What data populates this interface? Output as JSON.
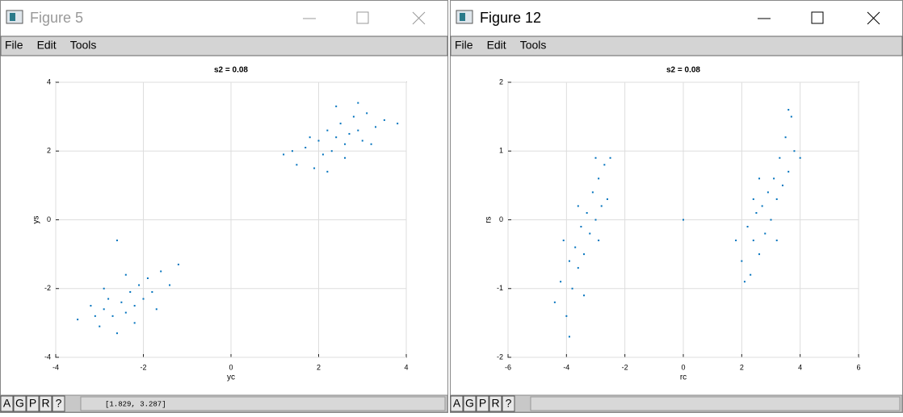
{
  "windows": [
    {
      "title": "Figure 5",
      "menu": [
        "File",
        "Edit",
        "Tools"
      ],
      "status_buttons": [
        "A",
        "G",
        "P",
        "R",
        "?"
      ],
      "status_text": "[1.829, 3.287]"
    },
    {
      "title": "Figure 12",
      "menu": [
        "File",
        "Edit",
        "Tools"
      ],
      "status_buttons": [
        "A",
        "G",
        "P",
        "R",
        "?"
      ]
    }
  ],
  "chart_data": [
    {
      "type": "scatter",
      "title": "s2 = 0.08",
      "x_label": "yc",
      "y_label": "ys",
      "color": "#0072bd",
      "grid": true,
      "xlim": [
        -4,
        4
      ],
      "xticks": [
        -4,
        -2,
        0,
        2,
        4
      ],
      "ylim": [
        -4,
        4
      ],
      "yticks": [
        -4,
        -2,
        0,
        2,
        4
      ],
      "x": [
        1.2,
        1.5,
        1.7,
        1.9,
        2.0,
        2.1,
        2.2,
        2.3,
        2.4,
        2.5,
        2.6,
        2.7,
        2.8,
        2.9,
        3.0,
        3.1,
        3.3,
        3.5,
        2.2,
        2.6,
        3.2,
        1.8,
        2.4,
        2.9,
        3.8,
        1.4,
        -3.5,
        -3.2,
        -3.0,
        -2.9,
        -2.8,
        -2.7,
        -2.6,
        -2.5,
        -2.4,
        -2.3,
        -2.2,
        -2.1,
        -2.0,
        -1.9,
        -1.8,
        -1.6,
        -1.4,
        -1.2,
        -2.6,
        -2.9,
        -2.2,
        -1.7,
        -3.1,
        -2.4
      ],
      "values": [
        1.9,
        1.6,
        2.1,
        1.5,
        2.3,
        1.9,
        2.6,
        2.0,
        2.4,
        2.8,
        2.2,
        2.5,
        3.0,
        2.6,
        2.3,
        3.1,
        2.7,
        2.9,
        1.4,
        1.8,
        2.2,
        2.4,
        3.3,
        3.4,
        2.8,
        2.0,
        -2.9,
        -2.5,
        -3.1,
        -2.6,
        -2.3,
        -2.8,
        -3.3,
        -2.4,
        -2.7,
        -2.1,
        -2.5,
        -1.9,
        -2.3,
        -1.7,
        -2.1,
        -1.5,
        -1.9,
        -1.3,
        -0.6,
        -2.0,
        -3.0,
        -2.6,
        -2.8,
        -1.6
      ]
    },
    {
      "type": "scatter",
      "title": "s2 = 0.08",
      "x_label": "rc",
      "y_label": "rs",
      "color": "#0072bd",
      "grid": true,
      "xlim": [
        -6,
        6
      ],
      "xticks": [
        -6,
        -4,
        -2,
        0,
        2,
        4,
        6
      ],
      "ylim": [
        -2,
        2
      ],
      "yticks": [
        -2,
        -1,
        0,
        1,
        2
      ],
      "x": [
        -4.4,
        -4.2,
        -4.0,
        -3.9,
        -3.8,
        -3.7,
        -3.6,
        -3.5,
        -3.4,
        -3.3,
        -3.2,
        -3.1,
        -3.0,
        -2.9,
        -2.8,
        -2.7,
        -2.6,
        -2.5,
        -3.9,
        -3.4,
        -2.9,
        -4.1,
        -3.6,
        -3.0,
        1.8,
        2.0,
        2.2,
        2.3,
        2.4,
        2.5,
        2.6,
        2.7,
        2.8,
        2.9,
        3.0,
        3.1,
        3.2,
        3.3,
        3.4,
        3.5,
        3.6,
        3.7,
        3.8,
        2.1,
        2.6,
        3.2,
        3.6,
        4.0,
        2.4,
        0
      ],
      "values": [
        -1.2,
        -0.9,
        -1.4,
        -0.6,
        -1.0,
        -0.4,
        -0.7,
        -0.1,
        -0.5,
        0.1,
        -0.2,
        0.4,
        0.0,
        0.6,
        0.2,
        0.8,
        0.3,
        0.9,
        -1.7,
        -1.1,
        -0.3,
        -0.3,
        0.2,
        0.9,
        -0.3,
        -0.6,
        -0.1,
        -0.8,
        -0.3,
        0.1,
        -0.5,
        0.2,
        -0.2,
        0.4,
        0.0,
        0.6,
        0.3,
        0.9,
        0.5,
        1.2,
        0.7,
        1.5,
        1.0,
        -0.9,
        0.6,
        -0.3,
        1.6,
        0.9,
        0.3,
        0
      ]
    }
  ]
}
